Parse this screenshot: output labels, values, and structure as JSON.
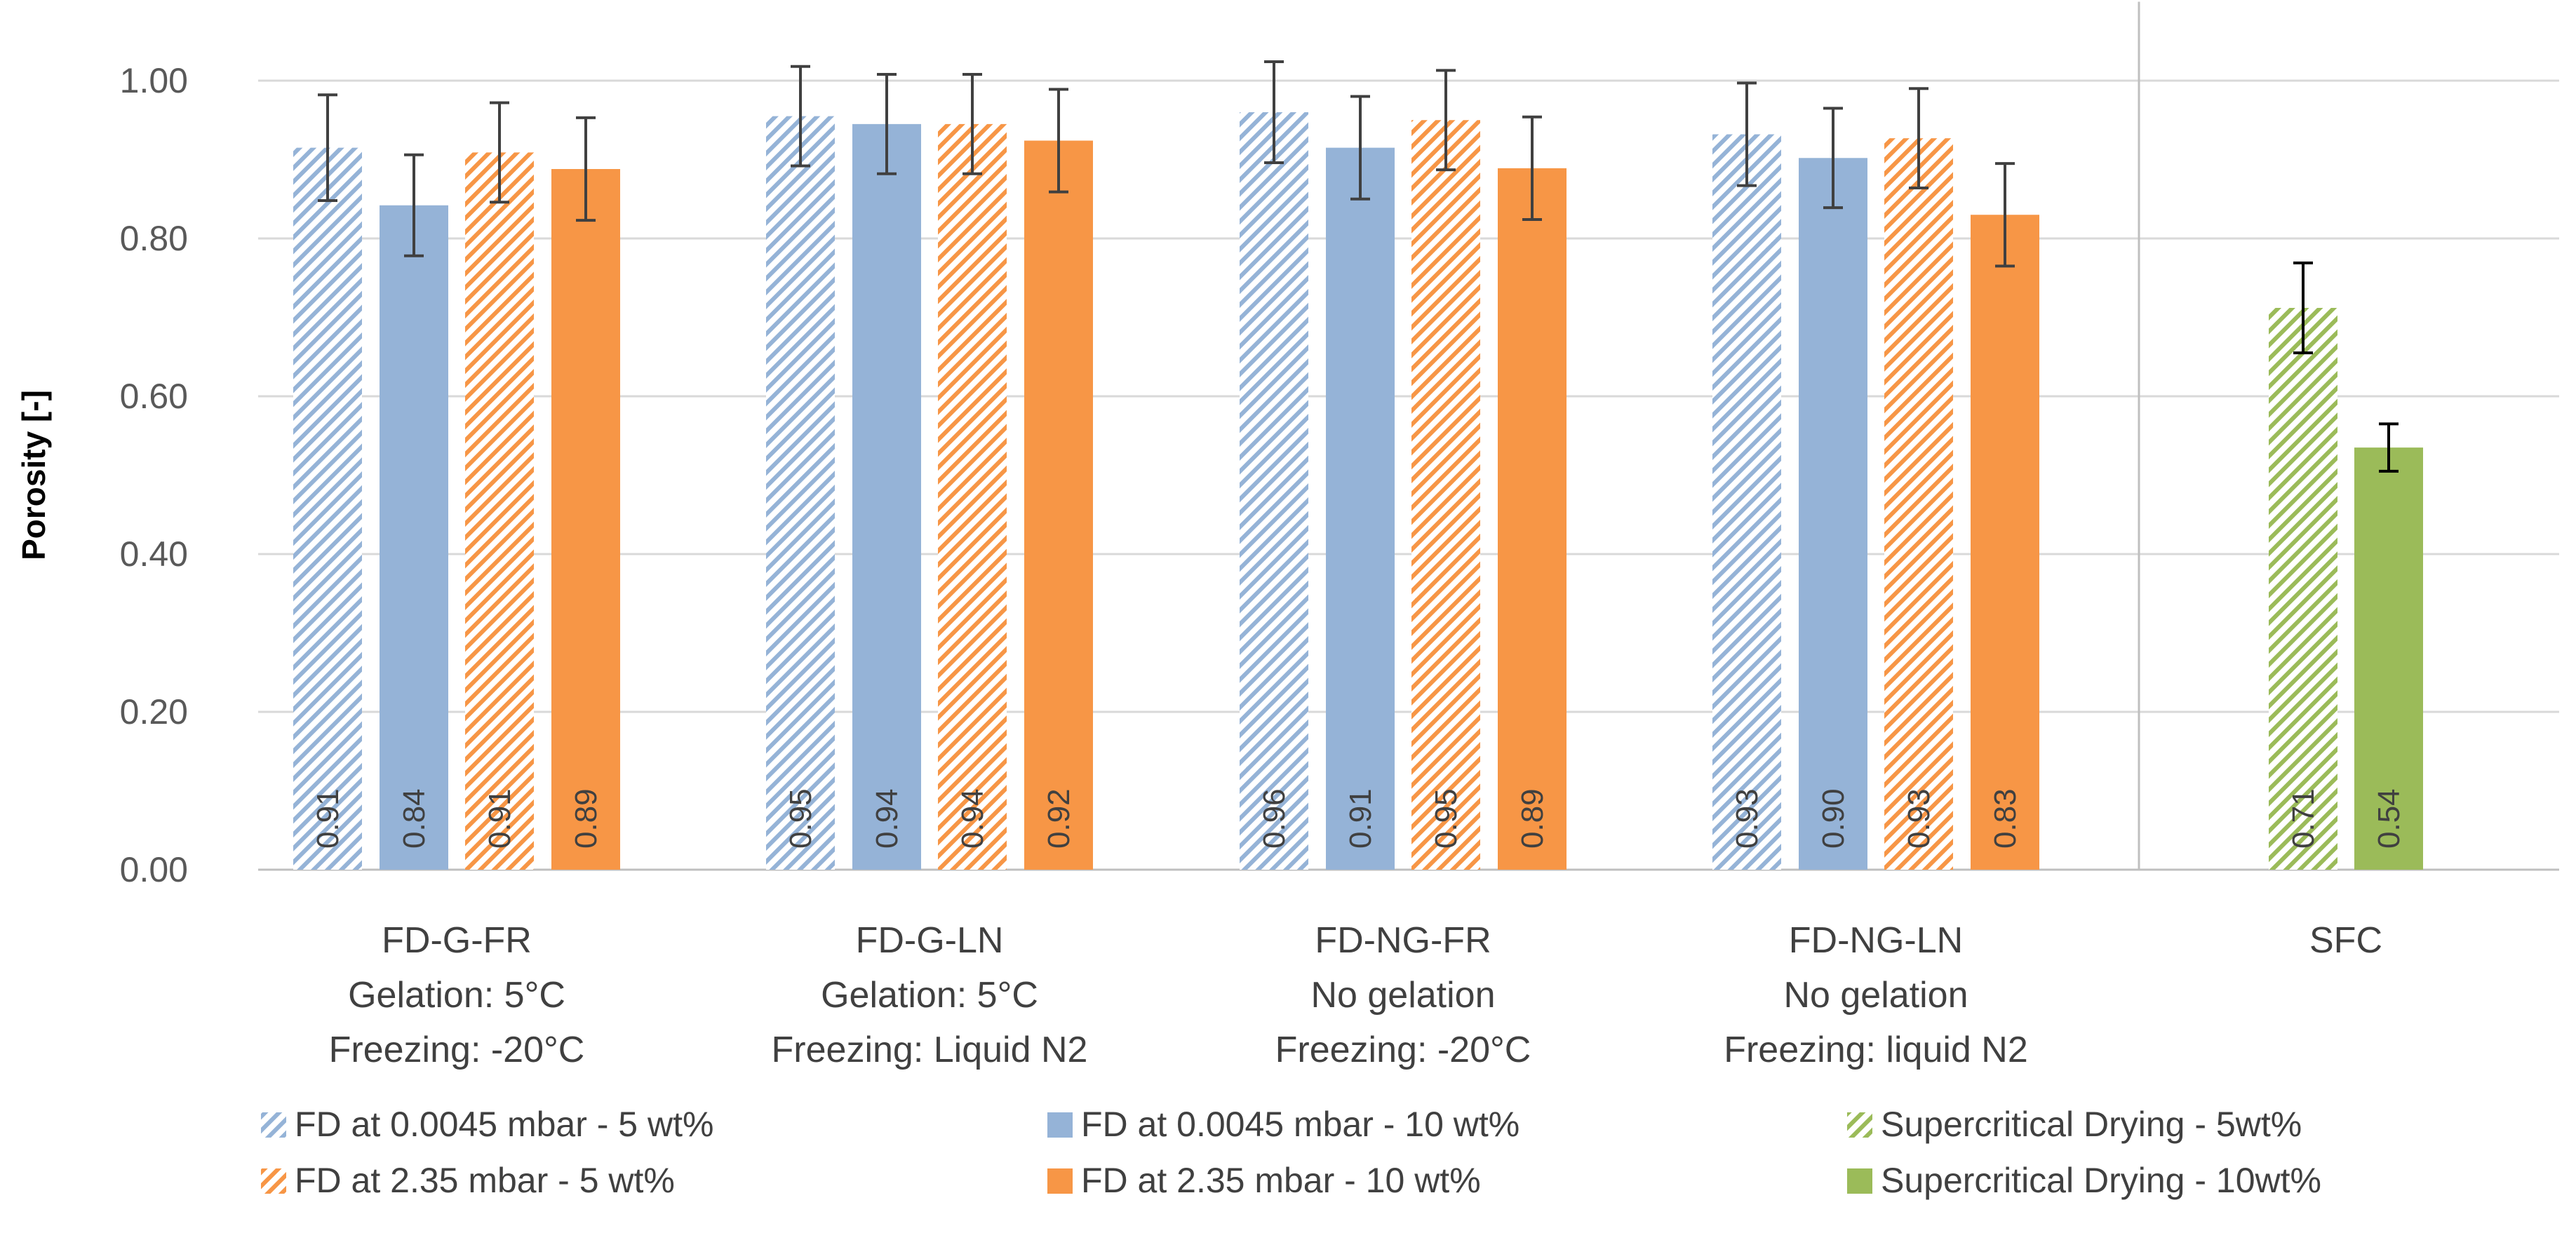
{
  "colors": {
    "blue": "#95b3d7",
    "orange": "#f79646",
    "green": "#9bbb59",
    "grid": "#d9d9d9",
    "error": "#404040"
  },
  "chart_data": {
    "type": "bar",
    "ylabel": "Porosity [-]",
    "ylim": [
      0,
      1.1
    ],
    "yticks": [
      "0.00",
      "0.20",
      "0.40",
      "0.60",
      "0.80",
      "1.00"
    ],
    "ytick_values": [
      0,
      0.2,
      0.4,
      0.6,
      0.8,
      1.0
    ],
    "groups": [
      {
        "name": "FD-G-FR",
        "lines": [
          "FD-G-FR",
          "Gelation: 5°C",
          "Freezing: -20°C"
        ],
        "bars": [
          {
            "series": 0,
            "value": 0.915,
            "label": "0.91",
            "err": 0.067
          },
          {
            "series": 1,
            "value": 0.842,
            "label": "0.84",
            "err": 0.064
          },
          {
            "series": 2,
            "value": 0.909,
            "label": "0.91",
            "err": 0.063
          },
          {
            "series": 3,
            "value": 0.888,
            "label": "0.89",
            "err": 0.065
          }
        ]
      },
      {
        "name": "FD-G-LN",
        "lines": [
          "FD-G-LN",
          "Gelation: 5°C",
          "Freezing: Liquid N2"
        ],
        "bars": [
          {
            "series": 0,
            "value": 0.955,
            "label": "0.95",
            "err": 0.063
          },
          {
            "series": 1,
            "value": 0.945,
            "label": "0.94",
            "err": 0.063
          },
          {
            "series": 2,
            "value": 0.945,
            "label": "0.94",
            "err": 0.063
          },
          {
            "series": 3,
            "value": 0.924,
            "label": "0.92",
            "err": 0.065
          }
        ]
      },
      {
        "name": "FD-NG-FR",
        "lines": [
          "FD-NG-FR",
          "No gelation",
          "Freezing: -20°C"
        ],
        "bars": [
          {
            "series": 0,
            "value": 0.96,
            "label": "0.96",
            "err": 0.064
          },
          {
            "series": 1,
            "value": 0.915,
            "label": "0.91",
            "err": 0.065
          },
          {
            "series": 2,
            "value": 0.95,
            "label": "0.95",
            "err": 0.063
          },
          {
            "series": 3,
            "value": 0.889,
            "label": "0.89",
            "err": 0.065
          }
        ]
      },
      {
        "name": "FD-NG-LN",
        "lines": [
          "FD-NG-LN",
          "No gelation",
          "Freezing: liquid N2"
        ],
        "bars": [
          {
            "series": 0,
            "value": 0.932,
            "label": "0.93",
            "err": 0.065
          },
          {
            "series": 1,
            "value": 0.902,
            "label": "0.90",
            "err": 0.063
          },
          {
            "series": 2,
            "value": 0.927,
            "label": "0.93",
            "err": 0.063
          },
          {
            "series": 3,
            "value": 0.83,
            "label": "0.83",
            "err": 0.065
          }
        ]
      },
      {
        "name": "SFC",
        "lines": [
          "SFC"
        ],
        "bars": [
          {
            "series": 4,
            "value": 0.712,
            "label": "0.71",
            "err": 0.057
          },
          {
            "series": 5,
            "value": 0.535,
            "label": "0.54",
            "err": 0.03
          }
        ]
      }
    ],
    "series": [
      {
        "name": "FD at 0.0045 mbar - 5 wt%",
        "color": "#95b3d7",
        "pattern": "hatched"
      },
      {
        "name": "FD at 0.0045 mbar - 10 wt%",
        "color": "#95b3d7",
        "pattern": "solid"
      },
      {
        "name": "FD at 2.35 mbar - 5 wt%",
        "color": "#f79646",
        "pattern": "hatched"
      },
      {
        "name": "FD at 2.35 mbar - 10 wt%",
        "color": "#f79646",
        "pattern": "solid"
      },
      {
        "name": "Supercritical Drying - 5wt%",
        "color": "#9bbb59",
        "pattern": "hatched"
      },
      {
        "name": "Supercritical Drying - 10wt%",
        "color": "#9bbb59",
        "pattern": "solid"
      }
    ],
    "legend_position": "bottom"
  }
}
